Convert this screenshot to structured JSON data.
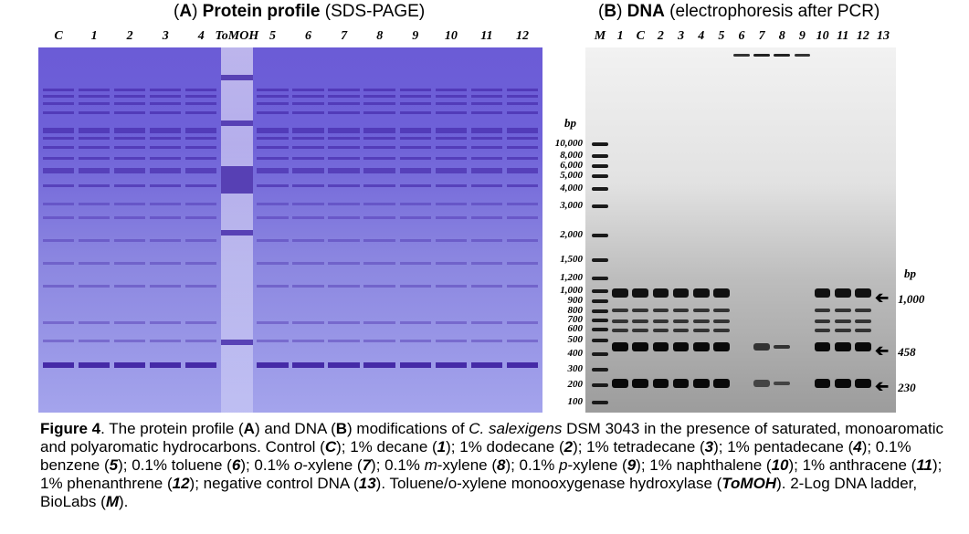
{
  "panel_a": {
    "letter": "A",
    "title": "Protein profile",
    "subtitle": "(SDS-PAGE)",
    "lanes": [
      "C",
      "1",
      "2",
      "3",
      "4",
      "ToMOH",
      "5",
      "6",
      "7",
      "8",
      "9",
      "10",
      "11",
      "12"
    ]
  },
  "panel_b": {
    "letter": "B",
    "title": "DNA",
    "subtitle": "(electrophoresis after PCR)",
    "lanes": [
      "M",
      "1",
      "C",
      "2",
      "3",
      "4",
      "5",
      "6",
      "7",
      "8",
      "9",
      "10",
      "11",
      "12",
      "13"
    ],
    "ladder_unit": "bp",
    "ladder": [
      "10,000",
      "8,000",
      "6,000",
      "5,000",
      "4,000",
      "3,000",
      "2,000",
      "1,500",
      "1,200",
      "1,000",
      "900",
      "800",
      "700",
      "600",
      "500",
      "400",
      "300",
      "200",
      "100"
    ],
    "marker_unit": "bp",
    "markers": [
      "1,000",
      "458",
      "230"
    ]
  },
  "caption": {
    "figure_label": "Figure 4",
    "p1": ". The protein profile (",
    "a": "A",
    "p2": ") and DNA (",
    "b": "B",
    "p3": ") modifications of ",
    "species": "C. salexigens",
    "p4": " DSM 3043 in the presence of saturated, monoaromatic and polyaromatic hydrocarbons. Control (",
    "c": "C",
    "p5": "); 1% decane (",
    "n1": "1",
    "p6": "); 1% dodecane (",
    "n2": "2",
    "p7": "); 1% tetradecane (",
    "n3": "3",
    "p8": "); 1% pentadecane (",
    "n4": "4",
    "p9": "); 0.1% benzene (",
    "n5": "5",
    "p10": "); 0.1% toluene (",
    "n6": "6",
    "p11": "); 0.1% ",
    "o": "o",
    "p12": "-xylene (",
    "n7": "7",
    "p13": "); 0.1% ",
    "m": "m",
    "p14": "-xylene (",
    "n8": "8",
    "p15": "); 0.1% ",
    "p": "p",
    "p16": "-xylene (",
    "n9": "9",
    "p17": "); 1% naphthalene (",
    "n10": "10",
    "p18": "); 1% anthracene (",
    "n11": "11",
    "p19": "); 1% phenanthrene (",
    "n12": "12",
    "p20": "); negative control DNA (",
    "n13": "13",
    "p21": "). Toluene/o-xylene monooxygenase hydroxylase (",
    "tomoh": "ToMOH",
    "p22": "). 2-Log DNA ladder, BioLabs (",
    "mm": "M",
    "p23": ")."
  }
}
